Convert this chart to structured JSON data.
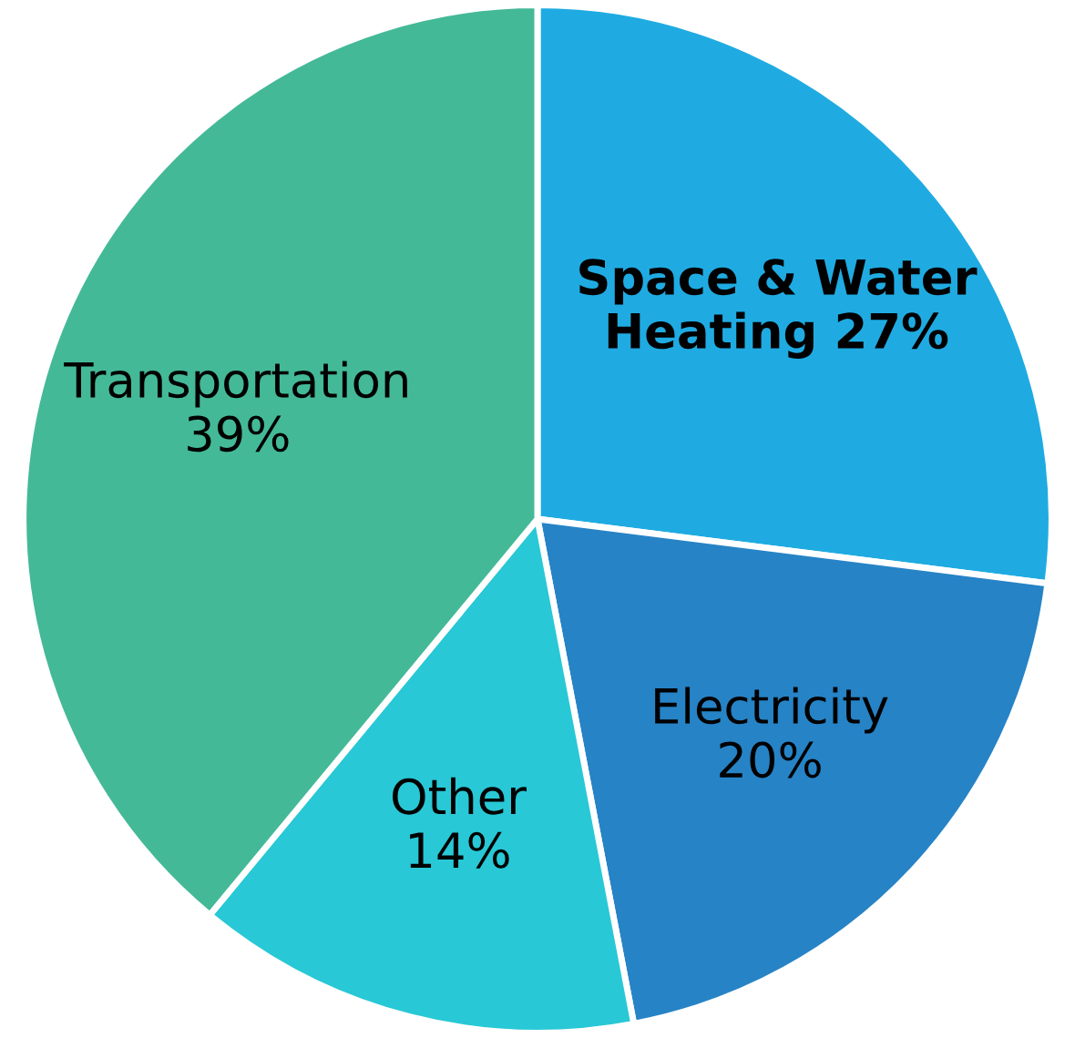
{
  "chart_data": {
    "type": "pie",
    "categories": [
      "Space & Water\nHeating",
      "Electricity",
      "Other",
      "Transportation"
    ],
    "values": [
      27,
      20,
      14,
      39
    ],
    "value_labels": [
      "27%",
      "20%",
      "14%",
      "39%"
    ],
    "colors": [
      "#1fabe2",
      "#2683c6",
      "#28c8d6",
      "#44b997"
    ]
  }
}
